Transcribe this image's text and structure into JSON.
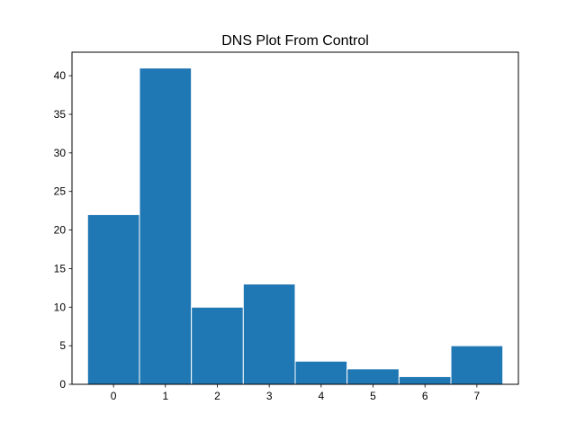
{
  "chart_data": {
    "type": "bar",
    "title": "DNS Plot From Control",
    "xlabel": "",
    "ylabel": "",
    "categories": [
      "0",
      "1",
      "2",
      "3",
      "4",
      "5",
      "6",
      "7"
    ],
    "x": [
      0,
      1,
      2,
      3,
      4,
      5,
      6,
      7
    ],
    "values": [
      22,
      41,
      10,
      13,
      3,
      2,
      1,
      5
    ],
    "xlim": [
      -0.8,
      7.8
    ],
    "ylim": [
      0,
      43.05
    ],
    "yticks": [
      0,
      5,
      10,
      15,
      20,
      25,
      30,
      35,
      40
    ],
    "grid": false,
    "legend": "none",
    "colors": {
      "bar": "#1f77b4",
      "bar_edge": "#ffffff",
      "axis": "#000000"
    }
  }
}
